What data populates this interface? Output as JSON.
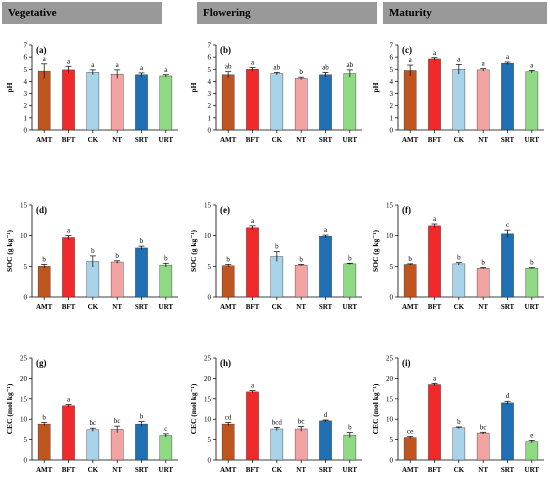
{
  "headers": [
    "Vegetative",
    "Flowering",
    "Maturity"
  ],
  "colors": {
    "AMT": "#c0561f",
    "BFT": "#f02a2a",
    "CK": "#a9d3e8",
    "NT": "#f4a3a3",
    "SRT": "#1f6fb4",
    "URT": "#8fd884",
    "axis": "#000000",
    "header_bg": "#999999"
  },
  "chart_data": [
    {
      "type": "bar",
      "panel": "(a)",
      "ylabel": "pH",
      "ylim": [
        0,
        7
      ],
      "yticks": [
        0,
        1,
        2,
        3,
        4,
        5,
        6,
        7
      ],
      "categories": [
        "AMT",
        "BFT",
        "CK",
        "NT",
        "SRT",
        "URT"
      ],
      "values": [
        4.85,
        4.95,
        4.75,
        4.6,
        4.55,
        4.45
      ],
      "errors": [
        0.6,
        0.3,
        0.2,
        0.35,
        0.15,
        0.1
      ],
      "letters": [
        "a",
        "a",
        "a",
        "a",
        "a",
        "a"
      ]
    },
    {
      "type": "bar",
      "panel": "(b)",
      "ylabel": "pH",
      "ylim": [
        0,
        7
      ],
      "yticks": [
        0,
        1,
        2,
        3,
        4,
        5,
        6,
        7
      ],
      "categories": [
        "AMT",
        "BFT",
        "CK",
        "NT",
        "SRT",
        "URT"
      ],
      "values": [
        4.55,
        5.0,
        4.65,
        4.25,
        4.55,
        4.65
      ],
      "errors": [
        0.25,
        0.15,
        0.1,
        0.1,
        0.2,
        0.3
      ],
      "letters": [
        "ab",
        "a",
        "ab",
        "b",
        "ab",
        "ab"
      ]
    },
    {
      "type": "bar",
      "panel": "(c)",
      "ylabel": "pH",
      "ylim": [
        0,
        7
      ],
      "yticks": [
        0,
        1,
        2,
        3,
        4,
        5,
        6,
        7
      ],
      "categories": [
        "AMT",
        "BFT",
        "CK",
        "NT",
        "SRT",
        "URT"
      ],
      "values": [
        4.9,
        5.85,
        5.0,
        4.95,
        5.5,
        4.8
      ],
      "errors": [
        0.45,
        0.1,
        0.4,
        0.1,
        0.1,
        0.1
      ],
      "letters": [
        "a",
        "a",
        "a",
        "a",
        "a",
        "a"
      ]
    },
    {
      "type": "bar",
      "panel": "(d)",
      "ylabel": "SOC (g kg⁻¹)",
      "ylim": [
        0,
        15
      ],
      "yticks": [
        0,
        5,
        10,
        15
      ],
      "categories": [
        "AMT",
        "BFT",
        "CK",
        "NT",
        "SRT",
        "URT"
      ],
      "values": [
        5.0,
        9.7,
        5.8,
        5.7,
        8.0,
        5.2
      ],
      "errors": [
        0.3,
        0.3,
        0.9,
        0.2,
        0.3,
        0.3
      ],
      "letters": [
        "b",
        "a",
        "b",
        "b",
        "b",
        "b"
      ]
    },
    {
      "type": "bar",
      "panel": "(e)",
      "ylabel": "SOC (g kg⁻¹)",
      "ylim": [
        0,
        15
      ],
      "yticks": [
        0,
        5,
        10,
        15
      ],
      "categories": [
        "AMT",
        "BFT",
        "CK",
        "NT",
        "SRT",
        "URT"
      ],
      "values": [
        5.1,
        11.3,
        6.6,
        5.2,
        9.9,
        5.4
      ],
      "errors": [
        0.2,
        0.3,
        0.8,
        0.1,
        0.2,
        0.1
      ],
      "letters": [
        "b",
        "a",
        "b",
        "b",
        "a",
        "b"
      ]
    },
    {
      "type": "bar",
      "panel": "(f)",
      "ylabel": "SOC (g kg⁻¹)",
      "ylim": [
        0,
        15
      ],
      "yticks": [
        0,
        5,
        10,
        15
      ],
      "categories": [
        "AMT",
        "BFT",
        "CK",
        "NT",
        "SRT",
        "URT"
      ],
      "values": [
        5.3,
        11.6,
        5.4,
        4.7,
        10.3,
        4.7
      ],
      "errors": [
        0.1,
        0.3,
        0.2,
        0.1,
        0.6,
        0.1
      ],
      "letters": [
        "b",
        "a",
        "b",
        "b",
        "c",
        "b"
      ]
    },
    {
      "type": "bar",
      "panel": "(g)",
      "ylabel": "CEC (mol kg⁻¹)",
      "ylim": [
        0,
        25
      ],
      "yticks": [
        0,
        5,
        10,
        15,
        20,
        25
      ],
      "categories": [
        "AMT",
        "BFT",
        "CK",
        "NT",
        "SRT",
        "URT"
      ],
      "values": [
        8.8,
        13.3,
        7.4,
        7.5,
        8.8,
        6.0
      ],
      "errors": [
        0.4,
        0.3,
        0.4,
        0.8,
        0.6,
        0.4
      ],
      "letters": [
        "b",
        "a",
        "bc",
        "bc",
        "b",
        "c"
      ]
    },
    {
      "type": "bar",
      "panel": "(h)",
      "ylabel": "CEC (mol kg⁻¹)",
      "ylim": [
        0,
        25
      ],
      "yticks": [
        0,
        5,
        10,
        15,
        20,
        25
      ],
      "categories": [
        "AMT",
        "BFT",
        "CK",
        "NT",
        "SRT",
        "URT"
      ],
      "values": [
        8.8,
        16.7,
        7.6,
        7.6,
        9.6,
        6.1
      ],
      "errors": [
        0.4,
        0.3,
        0.4,
        0.6,
        0.2,
        0.6
      ],
      "letters": [
        "cd",
        "a",
        "bcd",
        "bc",
        "d",
        "b"
      ]
    },
    {
      "type": "bar",
      "panel": "(i)",
      "ylabel": "CEC (mol kg⁻¹)",
      "ylim": [
        0,
        25
      ],
      "yticks": [
        0,
        5,
        10,
        15,
        20,
        25
      ],
      "categories": [
        "AMT",
        "BFT",
        "CK",
        "NT",
        "SRT",
        "URT"
      ],
      "values": [
        5.5,
        18.5,
        7.9,
        6.6,
        14.0,
        4.5
      ],
      "errors": [
        0.3,
        0.3,
        0.2,
        0.2,
        0.4,
        0.3
      ],
      "letters": [
        "ce",
        "a",
        "b",
        "bc",
        "d",
        "e"
      ]
    }
  ]
}
